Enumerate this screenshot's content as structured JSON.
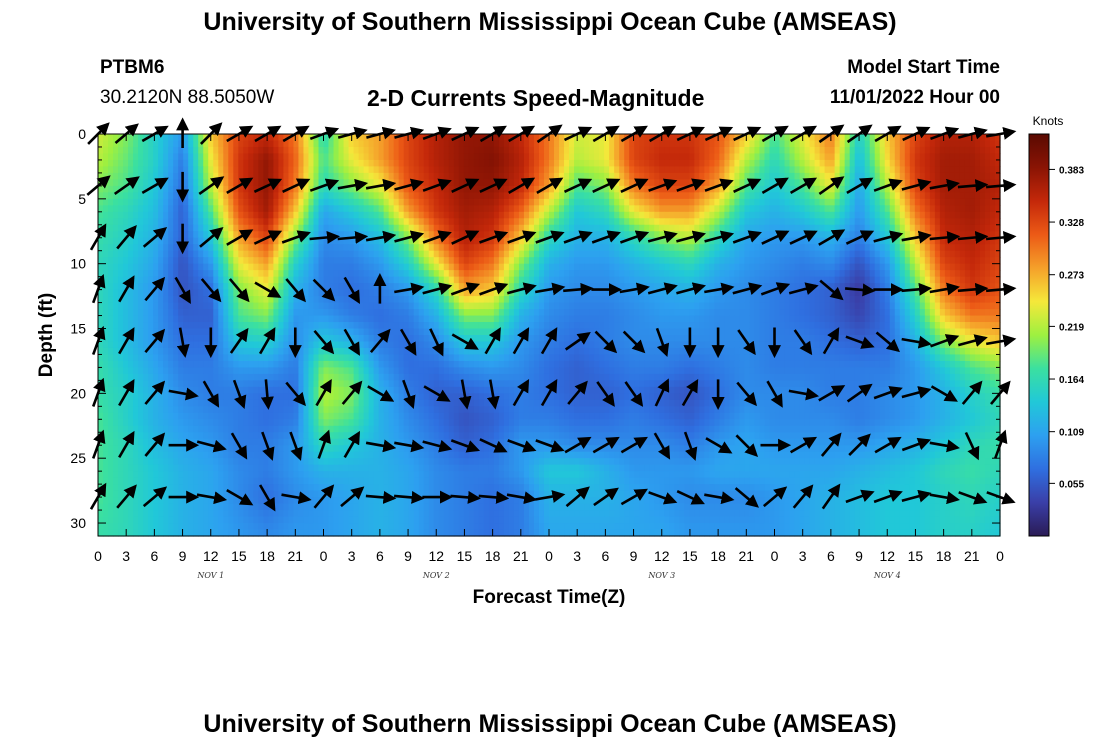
{
  "header": {
    "title": "University of Southern Mississippi Ocean Cube (AMSEAS)",
    "station": "PTBM6",
    "coords": "30.2120N  88.5050W",
    "subtitle": "2-D Currents Speed-Magnitude",
    "model_start_label": "Model Start Time",
    "model_start_value": "11/01/2022 Hour 00"
  },
  "footer": {
    "title": "University of Southern Mississippi Ocean Cube (AMSEAS)"
  },
  "chart_data": {
    "type": "heatmap",
    "title": "2-D Currents Speed-Magnitude",
    "xlabel": "Forecast Time(Z)",
    "ylabel": "Depth (ft)",
    "x_hours": [
      0,
      3,
      6,
      9,
      12,
      15,
      18,
      21,
      24,
      27,
      30,
      33,
      36,
      39,
      42,
      45,
      48,
      51,
      54,
      57,
      60,
      63,
      66,
      69,
      72,
      75,
      78,
      81,
      84,
      87,
      90,
      93,
      96
    ],
    "x_tick_labels": [
      "0",
      "3",
      "6",
      "9",
      "12",
      "15",
      "18",
      "21",
      "0",
      "3",
      "6",
      "9",
      "12",
      "15",
      "18",
      "21",
      "0",
      "3",
      "6",
      "9",
      "12",
      "15",
      "18",
      "21",
      "0",
      "3",
      "6",
      "9",
      "12",
      "15",
      "18",
      "21",
      "0"
    ],
    "day_labels": [
      {
        "text": "NOV 1",
        "hour": 12
      },
      {
        "text": "NOV 2",
        "hour": 36
      },
      {
        "text": "NOV 3",
        "hour": 60
      },
      {
        "text": "NOV 4",
        "hour": 84
      }
    ],
    "y_ticks": [
      0,
      5,
      10,
      15,
      20,
      25,
      30
    ],
    "ylim": [
      0,
      31
    ],
    "xlim": [
      0,
      96
    ],
    "colorbar": {
      "units": "Knots",
      "tick_values": [
        0.383,
        0.328,
        0.273,
        0.219,
        0.164,
        0.109,
        0.055
      ],
      "tick_labels": [
        "0.383",
        "0.328",
        "0.273",
        "0.219",
        "0.164",
        "0.109",
        "0.055"
      ],
      "range": [
        0.0,
        0.42
      ],
      "colormap": [
        "#2a1b55",
        "#3a3fa8",
        "#2f6fe0",
        "#2da0f0",
        "#21c8d8",
        "#3be0a0",
        "#9ef040",
        "#f5e83a",
        "#f5a02a",
        "#ec5a16",
        "#c4280a",
        "#8a1404",
        "#5a0a02"
      ]
    },
    "speed_profile": {
      "hours": [
        0,
        3,
        6,
        9,
        12,
        15,
        18,
        21,
        24,
        27,
        30,
        33,
        36,
        39,
        42,
        45,
        48,
        51,
        54,
        57,
        60,
        63,
        66,
        69,
        72,
        75,
        78,
        81,
        84,
        87,
        90,
        93,
        96
      ],
      "depths": [
        0,
        2,
        4,
        6,
        8,
        10,
        12,
        14,
        16,
        18,
        20,
        22,
        24,
        26,
        28,
        31
      ],
      "values": [
        [
          0.23,
          0.2,
          0.15,
          0.1,
          0.26,
          0.33,
          0.35,
          0.3,
          0.16,
          0.26,
          0.28,
          0.33,
          0.36,
          0.38,
          0.38,
          0.35,
          0.3,
          0.23,
          0.24,
          0.33,
          0.34,
          0.34,
          0.32,
          0.26,
          0.18,
          0.24,
          0.3,
          0.15,
          0.26,
          0.33,
          0.36,
          0.36,
          0.34
        ],
        [
          0.22,
          0.19,
          0.15,
          0.08,
          0.24,
          0.34,
          0.38,
          0.31,
          0.18,
          0.24,
          0.28,
          0.33,
          0.36,
          0.38,
          0.39,
          0.36,
          0.3,
          0.22,
          0.24,
          0.33,
          0.35,
          0.35,
          0.31,
          0.22,
          0.16,
          0.22,
          0.28,
          0.13,
          0.25,
          0.34,
          0.37,
          0.37,
          0.35
        ],
        [
          0.2,
          0.18,
          0.14,
          0.07,
          0.22,
          0.34,
          0.38,
          0.3,
          0.16,
          0.2,
          0.24,
          0.32,
          0.35,
          0.38,
          0.38,
          0.35,
          0.28,
          0.18,
          0.2,
          0.3,
          0.33,
          0.33,
          0.28,
          0.18,
          0.14,
          0.18,
          0.24,
          0.11,
          0.22,
          0.33,
          0.37,
          0.37,
          0.36
        ],
        [
          0.18,
          0.16,
          0.13,
          0.06,
          0.18,
          0.32,
          0.37,
          0.26,
          0.11,
          0.14,
          0.18,
          0.28,
          0.34,
          0.37,
          0.36,
          0.31,
          0.22,
          0.14,
          0.16,
          0.24,
          0.28,
          0.28,
          0.22,
          0.14,
          0.12,
          0.14,
          0.18,
          0.1,
          0.18,
          0.3,
          0.36,
          0.37,
          0.35
        ],
        [
          0.17,
          0.15,
          0.12,
          0.06,
          0.14,
          0.28,
          0.33,
          0.2,
          0.09,
          0.1,
          0.13,
          0.2,
          0.3,
          0.36,
          0.34,
          0.26,
          0.16,
          0.12,
          0.12,
          0.16,
          0.2,
          0.22,
          0.16,
          0.11,
          0.1,
          0.1,
          0.12,
          0.08,
          0.14,
          0.26,
          0.35,
          0.36,
          0.34
        ],
        [
          0.16,
          0.14,
          0.11,
          0.05,
          0.1,
          0.24,
          0.28,
          0.15,
          0.08,
          0.08,
          0.1,
          0.15,
          0.24,
          0.33,
          0.3,
          0.2,
          0.12,
          0.1,
          0.1,
          0.12,
          0.14,
          0.16,
          0.12,
          0.1,
          0.09,
          0.08,
          0.09,
          0.05,
          0.1,
          0.22,
          0.33,
          0.35,
          0.33
        ],
        [
          0.16,
          0.13,
          0.1,
          0.05,
          0.07,
          0.2,
          0.24,
          0.12,
          0.08,
          0.07,
          0.08,
          0.1,
          0.16,
          0.28,
          0.26,
          0.16,
          0.1,
          0.09,
          0.09,
          0.1,
          0.11,
          0.12,
          0.1,
          0.09,
          0.08,
          0.07,
          0.06,
          0.03,
          0.08,
          0.18,
          0.3,
          0.34,
          0.32
        ],
        [
          0.16,
          0.13,
          0.1,
          0.06,
          0.06,
          0.18,
          0.2,
          0.1,
          0.1,
          0.08,
          0.07,
          0.08,
          0.12,
          0.2,
          0.2,
          0.12,
          0.09,
          0.08,
          0.08,
          0.09,
          0.1,
          0.1,
          0.09,
          0.09,
          0.08,
          0.07,
          0.06,
          0.04,
          0.07,
          0.15,
          0.26,
          0.3,
          0.3
        ],
        [
          0.16,
          0.13,
          0.1,
          0.07,
          0.07,
          0.14,
          0.15,
          0.09,
          0.14,
          0.12,
          0.08,
          0.07,
          0.09,
          0.14,
          0.14,
          0.1,
          0.08,
          0.07,
          0.08,
          0.09,
          0.09,
          0.09,
          0.09,
          0.09,
          0.08,
          0.08,
          0.07,
          0.06,
          0.07,
          0.12,
          0.2,
          0.24,
          0.26
        ],
        [
          0.17,
          0.14,
          0.11,
          0.08,
          0.08,
          0.1,
          0.1,
          0.08,
          0.2,
          0.18,
          0.1,
          0.07,
          0.07,
          0.09,
          0.1,
          0.09,
          0.07,
          0.06,
          0.07,
          0.08,
          0.08,
          0.07,
          0.08,
          0.09,
          0.08,
          0.08,
          0.08,
          0.08,
          0.08,
          0.1,
          0.14,
          0.18,
          0.2
        ],
        [
          0.17,
          0.15,
          0.12,
          0.09,
          0.08,
          0.08,
          0.07,
          0.07,
          0.22,
          0.2,
          0.12,
          0.08,
          0.06,
          0.06,
          0.07,
          0.08,
          0.07,
          0.06,
          0.06,
          0.07,
          0.06,
          0.05,
          0.07,
          0.09,
          0.09,
          0.09,
          0.08,
          0.08,
          0.09,
          0.1,
          0.12,
          0.15,
          0.17
        ],
        [
          0.18,
          0.15,
          0.12,
          0.1,
          0.09,
          0.08,
          0.07,
          0.08,
          0.2,
          0.18,
          0.12,
          0.09,
          0.07,
          0.05,
          0.06,
          0.08,
          0.08,
          0.07,
          0.07,
          0.08,
          0.07,
          0.06,
          0.08,
          0.1,
          0.09,
          0.09,
          0.09,
          0.08,
          0.09,
          0.1,
          0.12,
          0.14,
          0.16
        ],
        [
          0.18,
          0.16,
          0.13,
          0.11,
          0.1,
          0.08,
          0.08,
          0.1,
          0.16,
          0.14,
          0.12,
          0.1,
          0.08,
          0.06,
          0.07,
          0.1,
          0.1,
          0.09,
          0.09,
          0.09,
          0.09,
          0.08,
          0.1,
          0.11,
          0.1,
          0.1,
          0.1,
          0.1,
          0.11,
          0.12,
          0.14,
          0.16,
          0.17
        ],
        [
          0.18,
          0.16,
          0.14,
          0.12,
          0.11,
          0.09,
          0.08,
          0.1,
          0.12,
          0.12,
          0.12,
          0.11,
          0.09,
          0.08,
          0.08,
          0.1,
          0.14,
          0.14,
          0.12,
          0.1,
          0.1,
          0.1,
          0.11,
          0.11,
          0.11,
          0.11,
          0.11,
          0.12,
          0.13,
          0.14,
          0.16,
          0.17,
          0.16
        ],
        [
          0.18,
          0.16,
          0.14,
          0.12,
          0.11,
          0.09,
          0.07,
          0.09,
          0.1,
          0.11,
          0.12,
          0.11,
          0.09,
          0.08,
          0.07,
          0.08,
          0.12,
          0.12,
          0.12,
          0.11,
          0.1,
          0.09,
          0.09,
          0.09,
          0.1,
          0.11,
          0.12,
          0.13,
          0.14,
          0.14,
          0.15,
          0.16,
          0.15
        ],
        [
          0.17,
          0.16,
          0.14,
          0.12,
          0.11,
          0.1,
          0.09,
          0.1,
          0.1,
          0.11,
          0.12,
          0.11,
          0.09,
          0.08,
          0.07,
          0.08,
          0.11,
          0.11,
          0.11,
          0.11,
          0.11,
          0.1,
          0.1,
          0.1,
          0.1,
          0.11,
          0.12,
          0.13,
          0.14,
          0.14,
          0.15,
          0.15,
          0.14
        ]
      ]
    },
    "vectors": {
      "hours": [
        0,
        3,
        6,
        9,
        12,
        15,
        18,
        21,
        24,
        27,
        30,
        33,
        36,
        39,
        42,
        45,
        48,
        51,
        54,
        57,
        60,
        63,
        66,
        69,
        72,
        75,
        78,
        81,
        84,
        87,
        90,
        93,
        96
      ],
      "depths": [
        0,
        4,
        8,
        12,
        16,
        20,
        24,
        28
      ],
      "direction_deg": [
        [
          45,
          50,
          60,
          0,
          45,
          60,
          60,
          60,
          70,
          75,
          75,
          75,
          70,
          65,
          60,
          60,
          55,
          65,
          60,
          60,
          60,
          65,
          65,
          65,
          60,
          60,
          55,
          55,
          60,
          65,
          70,
          75,
          80
        ],
        [
          50,
          55,
          60,
          180,
          55,
          60,
          65,
          65,
          70,
          80,
          80,
          75,
          70,
          65,
          65,
          60,
          60,
          65,
          65,
          65,
          70,
          70,
          70,
          65,
          60,
          60,
          55,
          60,
          70,
          75,
          80,
          85,
          85
        ],
        [
          30,
          40,
          50,
          180,
          50,
          60,
          65,
          70,
          85,
          85,
          80,
          75,
          70,
          65,
          70,
          70,
          70,
          70,
          70,
          70,
          75,
          75,
          75,
          70,
          65,
          65,
          60,
          65,
          75,
          80,
          85,
          85,
          85
        ],
        [
          20,
          30,
          40,
          150,
          140,
          140,
          120,
          140,
          135,
          150,
          0,
          80,
          75,
          70,
          70,
          75,
          80,
          85,
          90,
          80,
          75,
          75,
          80,
          75,
          70,
          75,
          130,
          95,
          90,
          85,
          80,
          85,
          85
        ],
        [
          20,
          30,
          40,
          170,
          180,
          35,
          30,
          180,
          140,
          150,
          40,
          150,
          155,
          120,
          30,
          30,
          30,
          55,
          135,
          135,
          160,
          180,
          180,
          145,
          180,
          145,
          30,
          110,
          130,
          100,
          70,
          75,
          80
        ],
        [
          20,
          30,
          40,
          100,
          150,
          160,
          175,
          140,
          30,
          40,
          120,
          160,
          120,
          170,
          170,
          30,
          30,
          40,
          145,
          145,
          25,
          30,
          180,
          140,
          150,
          100,
          60,
          55,
          70,
          75,
          120,
          40,
          40
        ],
        [
          20,
          30,
          40,
          90,
          105,
          150,
          160,
          160,
          20,
          30,
          100,
          100,
          105,
          110,
          115,
          110,
          110,
          60,
          60,
          60,
          150,
          160,
          120,
          135,
          90,
          60,
          40,
          45,
          60,
          70,
          100,
          155,
          20
        ],
        [
          30,
          40,
          50,
          90,
          100,
          120,
          150,
          100,
          40,
          50,
          95,
          95,
          90,
          95,
          95,
          100,
          80,
          50,
          55,
          60,
          110,
          115,
          100,
          130,
          50,
          40,
          35,
          70,
          70,
          75,
          100,
          110,
          110
        ]
      ]
    }
  }
}
